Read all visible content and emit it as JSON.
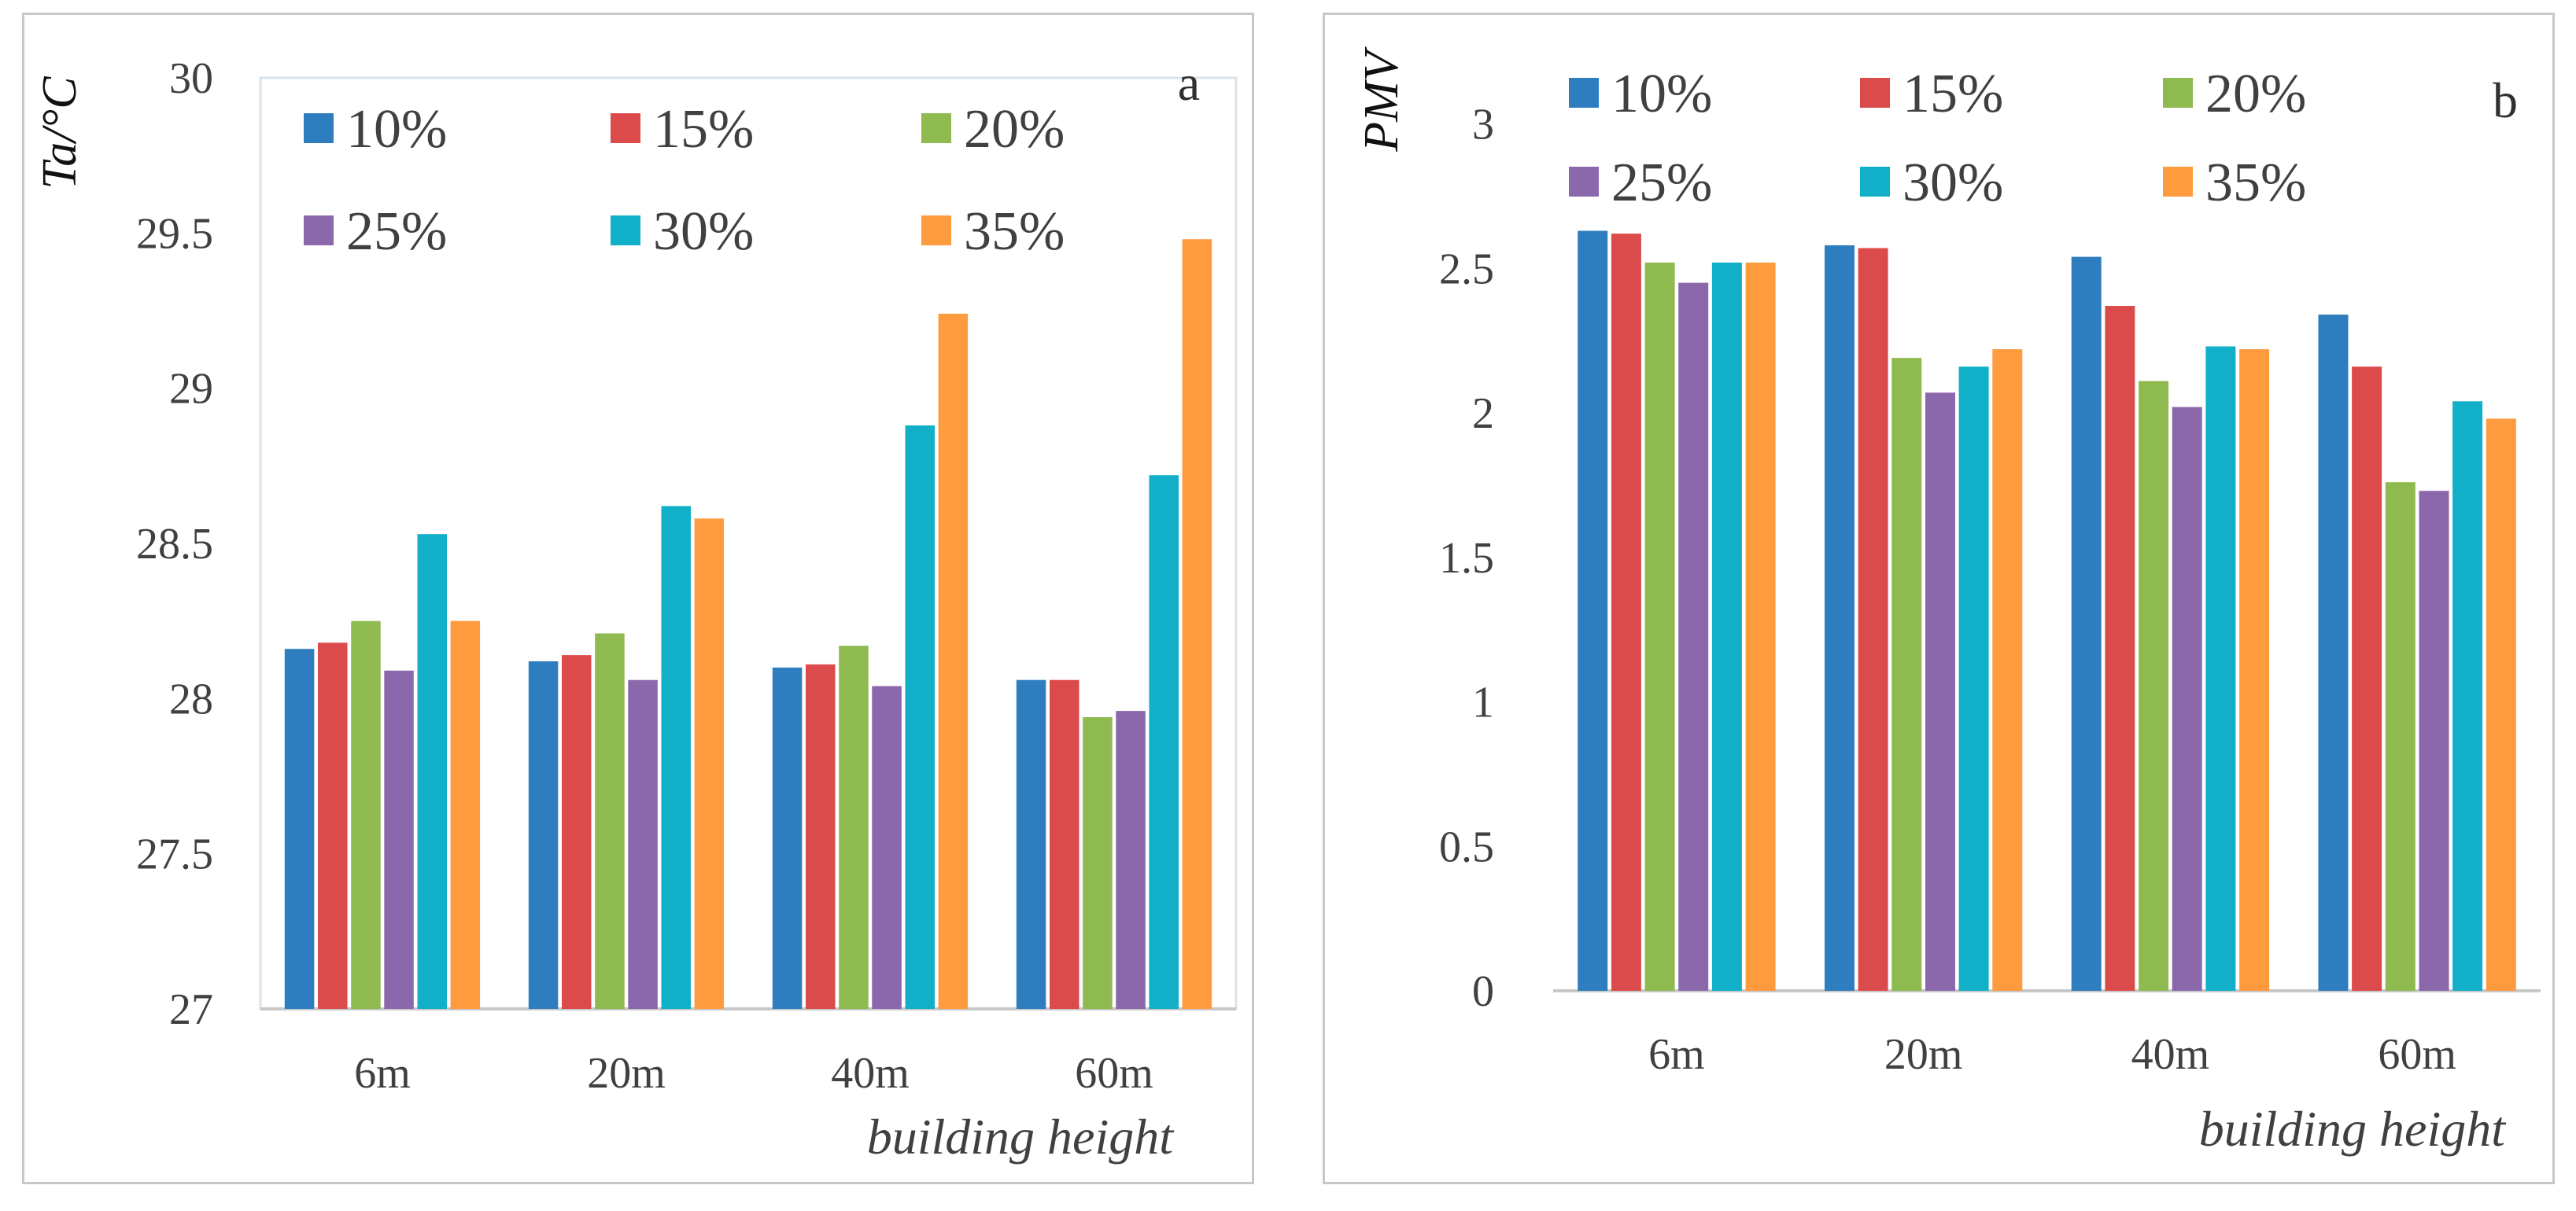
{
  "colors": {
    "10%": "#2e7ebf",
    "15%": "#dc4b4b",
    "20%": "#8fba4f",
    "25%": "#8b68ab",
    "30%": "#12b0c8",
    "35%": "#ff9b3f"
  },
  "chart_data": [
    {
      "type": "bar",
      "panel_label": "a",
      "ylabel": "Ta/°C",
      "xlabel": "building height",
      "categories": [
        "6m",
        "20m",
        "40m",
        "60m"
      ],
      "ylim": [
        27,
        30
      ],
      "yticks": [
        "27",
        "27.5",
        "28",
        "28.5",
        "29",
        "29.5",
        "30"
      ],
      "ytick_values": [
        27,
        27.5,
        28,
        28.5,
        29,
        29.5,
        30
      ],
      "legend": [
        "10%",
        "15%",
        "20%",
        "25%",
        "30%",
        "35%"
      ],
      "series": [
        {
          "name": "10%",
          "values": [
            28.16,
            28.12,
            28.1,
            28.06
          ]
        },
        {
          "name": "15%",
          "values": [
            28.18,
            28.14,
            28.11,
            28.06
          ]
        },
        {
          "name": "20%",
          "values": [
            28.25,
            28.21,
            28.17,
            27.94
          ]
        },
        {
          "name": "25%",
          "values": [
            28.09,
            28.06,
            28.04,
            27.96
          ]
        },
        {
          "name": "30%",
          "values": [
            28.53,
            28.62,
            28.88,
            28.72
          ]
        },
        {
          "name": "35%",
          "values": [
            28.25,
            28.58,
            29.24,
            29.48
          ]
        }
      ]
    },
    {
      "type": "bar",
      "panel_label": "b",
      "ylabel": "PMV",
      "xlabel": "building height",
      "categories": [
        "6m",
        "20m",
        "40m",
        "60m"
      ],
      "ylim": [
        0,
        3.2
      ],
      "yticks": [
        "0",
        "0.5",
        "1",
        "1.5",
        "2",
        "2.5",
        "3"
      ],
      "ytick_values": [
        0,
        0.5,
        1,
        1.5,
        2,
        2.5,
        3
      ],
      "legend": [
        "10%",
        "15%",
        "20%",
        "25%",
        "30%",
        "35%"
      ],
      "series": [
        {
          "name": "10%",
          "values": [
            2.63,
            2.58,
            2.54,
            2.34
          ]
        },
        {
          "name": "15%",
          "values": [
            2.62,
            2.57,
            2.37,
            2.16
          ]
        },
        {
          "name": "20%",
          "values": [
            2.52,
            2.19,
            2.11,
            1.76
          ]
        },
        {
          "name": "25%",
          "values": [
            2.45,
            2.07,
            2.02,
            1.73
          ]
        },
        {
          "name": "30%",
          "values": [
            2.52,
            2.16,
            2.23,
            2.04
          ]
        },
        {
          "name": "35%",
          "values": [
            2.52,
            2.22,
            2.22,
            1.98
          ]
        }
      ]
    }
  ]
}
